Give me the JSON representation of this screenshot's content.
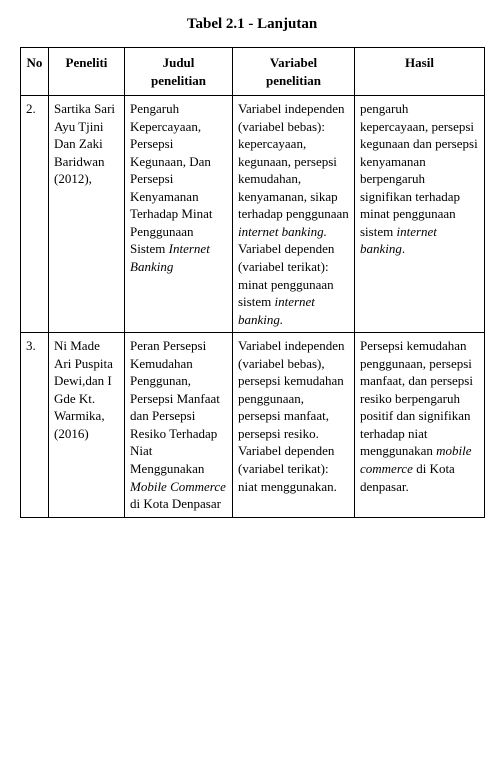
{
  "title": "Tabel 2.1 - Lanjutan",
  "columns": {
    "no": "No",
    "peneliti": "Peneliti",
    "judul_line1": "Judul",
    "judul_line2": "penelitian",
    "variabel_line1": "Variabel",
    "variabel_line2": "penelitian",
    "hasil": "Hasil"
  },
  "rows": [
    {
      "no": "2.",
      "peneliti": "Sartika Sari Ayu Tjini Dan Zaki Baridwan (2012),",
      "judul": {
        "pre": "Pengaruh Kepercayaan, Persepsi Kegunaan, Dan Persepsi Kenyamanan Terhadap Minat Penggunaan Sistem ",
        "em": "Internet Banking"
      },
      "variabel": {
        "pre": "Variabel independen (variabel bebas): kepercayaan, kegunaan, persepsi kemudahan, kenyamanan, sikap terhadap penggunaan ",
        "em1": "internet banking.",
        "mid": " Variabel dependen (variabel terikat): minat penggunaan sistem ",
        "em2": "internet banking."
      },
      "hasil": {
        "pre": "pengaruh kepercayaan, persepsi kegunaan dan persepsi kenyamanan berpengaruh signifikan terhadap minat penggunaan sistem ",
        "em": "internet banking",
        "post": "."
      }
    },
    {
      "no": "3.",
      "peneliti": "Ni Made Ari Puspita Dewi,dan I Gde Kt. Warmika, (2016)",
      "judul": {
        "pre": "Peran Persepsi Kemudahan Penggunan, Persepsi Manfaat dan Persepsi Resiko Terhadap Niat Menggunakan ",
        "em": "Mobile Commerce",
        "post": " di Kota Denpasar"
      },
      "variabel": {
        "pre": "Variabel independen (variabel bebas), persepsi kemudahan penggunaan, persepsi manfaat, persepsi resiko. Variabel dependen (variabel terikat): niat menggunakan."
      },
      "hasil": {
        "pre": "Persepsi kemudahan penggunaan, persepsi manfaat, dan persepsi resiko berpengaruh positif dan signifikan terhadap niat menggunakan ",
        "em": "mobile commerce",
        "post": " di Kota denpasar."
      }
    }
  ]
}
